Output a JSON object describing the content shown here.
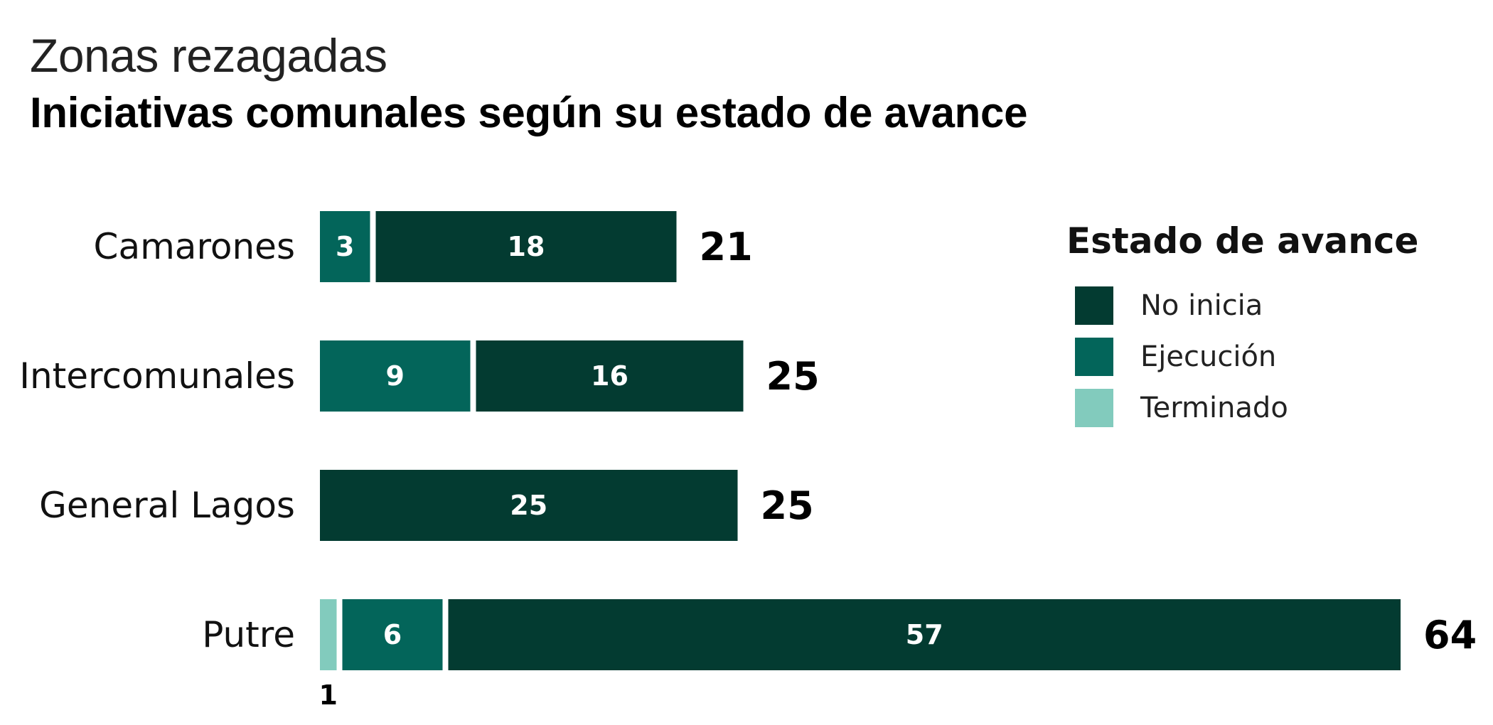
{
  "header": {
    "subtitle": "Zonas rezagadas",
    "title": "Iniciativas comunales según su estado de avance"
  },
  "legend": {
    "title": "Estado de avance",
    "items": [
      {
        "label": "No inicia",
        "color": "#033b31"
      },
      {
        "label": "Ejecución",
        "color": "#03655a"
      },
      {
        "label": "Terminado",
        "color": "#82cbbd"
      }
    ]
  },
  "chart_data": {
    "type": "bar",
    "orientation": "horizontal",
    "stacked": true,
    "categories": [
      "Camarones",
      "Intercomunales",
      "General Lagos",
      "Putre"
    ],
    "series": [
      {
        "name": "Terminado",
        "color": "#82cbbd",
        "values": [
          0,
          0,
          0,
          1
        ]
      },
      {
        "name": "Ejecución",
        "color": "#03655a",
        "values": [
          3,
          9,
          0,
          6
        ]
      },
      {
        "name": "No inicia",
        "color": "#033b31",
        "values": [
          18,
          16,
          25,
          57
        ]
      }
    ],
    "totals": [
      "21",
      "25",
      "25",
      "64"
    ],
    "title": "Iniciativas comunales según su estado de avance",
    "subtitle": "Zonas rezagadas",
    "xlabel": "",
    "ylabel": "",
    "xlim": [
      0,
      64
    ],
    "grid": false,
    "legend_position": "right"
  }
}
